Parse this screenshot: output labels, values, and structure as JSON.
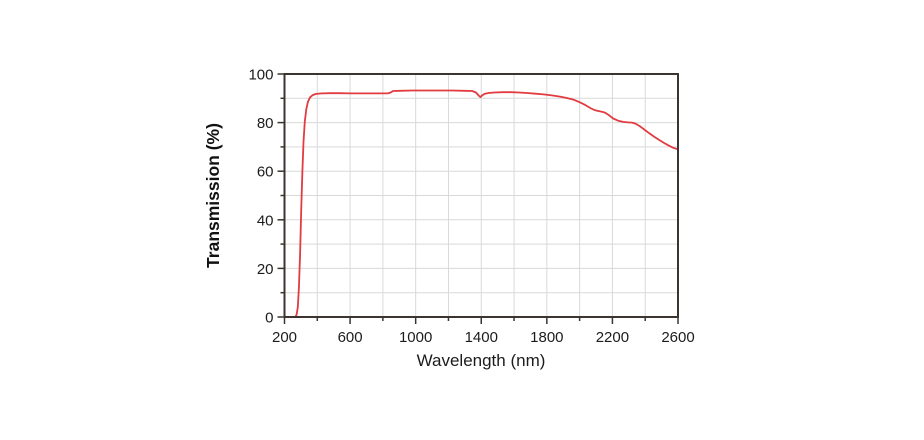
{
  "page": {
    "background": "#ffffff"
  },
  "chart_data": {
    "type": "line",
    "title": "",
    "xlabel": "Wavelength (nm)",
    "ylabel": "Transmission (%)",
    "xlim": [
      200,
      2600
    ],
    "ylim": [
      0,
      100
    ],
    "x_major_ticks": [
      200,
      600,
      1000,
      1400,
      1800,
      2200,
      2600
    ],
    "x_minor_step": 200,
    "y_major_ticks": [
      0,
      20,
      40,
      60,
      80,
      100
    ],
    "y_minor_step": 10,
    "grid": true,
    "legend_position": "none",
    "colors": {
      "line": "#e23b40",
      "grid": "#d9d9d9",
      "axis": "#3a3531",
      "text": "#1c1c1c"
    },
    "series": [
      {
        "name": "transmission",
        "color": "#e23b40",
        "points": [
          [
            200,
            0
          ],
          [
            252,
            0
          ],
          [
            266,
            0
          ],
          [
            274,
            1
          ],
          [
            281,
            4
          ],
          [
            288,
            12
          ],
          [
            295,
            26
          ],
          [
            302,
            44
          ],
          [
            309,
            60
          ],
          [
            316,
            72
          ],
          [
            324,
            80.5
          ],
          [
            333,
            85.5
          ],
          [
            343,
            88.5
          ],
          [
            356,
            90.4
          ],
          [
            372,
            91.3
          ],
          [
            392,
            91.8
          ],
          [
            430,
            92
          ],
          [
            480,
            92.1
          ],
          [
            540,
            92.1
          ],
          [
            600,
            92
          ],
          [
            660,
            92
          ],
          [
            720,
            92
          ],
          [
            780,
            92
          ],
          [
            830,
            92
          ],
          [
            848,
            92.4
          ],
          [
            862,
            93
          ],
          [
            900,
            93.1
          ],
          [
            980,
            93.2
          ],
          [
            1060,
            93.2
          ],
          [
            1140,
            93.2
          ],
          [
            1220,
            93.2
          ],
          [
            1300,
            93.1
          ],
          [
            1345,
            93
          ],
          [
            1368,
            92.4
          ],
          [
            1382,
            91.3
          ],
          [
            1395,
            90.5
          ],
          [
            1408,
            91.3
          ],
          [
            1422,
            91.9
          ],
          [
            1445,
            92.2
          ],
          [
            1480,
            92.4
          ],
          [
            1530,
            92.5
          ],
          [
            1580,
            92.5
          ],
          [
            1630,
            92.4
          ],
          [
            1680,
            92.2
          ],
          [
            1730,
            91.9
          ],
          [
            1780,
            91.6
          ],
          [
            1830,
            91.2
          ],
          [
            1880,
            90.7
          ],
          [
            1925,
            90.1
          ],
          [
            1965,
            89.4
          ],
          [
            2000,
            88.4
          ],
          [
            2035,
            87.2
          ],
          [
            2065,
            86
          ],
          [
            2090,
            85.2
          ],
          [
            2110,
            84.8
          ],
          [
            2135,
            84.5
          ],
          [
            2155,
            84.1
          ],
          [
            2180,
            83
          ],
          [
            2205,
            81.7
          ],
          [
            2235,
            80.8
          ],
          [
            2265,
            80.3
          ],
          [
            2295,
            80.1
          ],
          [
            2320,
            80
          ],
          [
            2340,
            79.6
          ],
          [
            2365,
            78.6
          ],
          [
            2395,
            77.1
          ],
          [
            2425,
            75.6
          ],
          [
            2455,
            74.2
          ],
          [
            2485,
            72.9
          ],
          [
            2515,
            71.6
          ],
          [
            2545,
            70.5
          ],
          [
            2572,
            69.6
          ],
          [
            2600,
            69
          ]
        ]
      }
    ]
  }
}
